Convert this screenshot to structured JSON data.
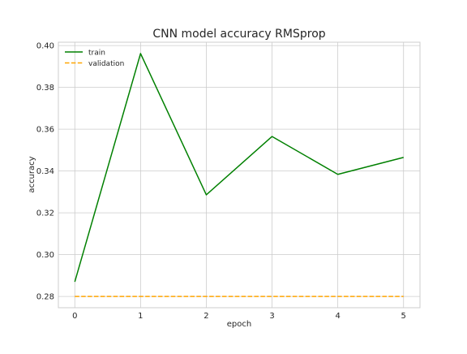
{
  "chart_data": {
    "type": "line",
    "title": "CNN model accuracy RMSprop",
    "xlabel": "epoch",
    "ylabel": "accuracy",
    "x": [
      0,
      1,
      2,
      3,
      4,
      5
    ],
    "series": [
      {
        "name": "train",
        "values": [
          0.287,
          0.3962,
          0.3286,
          0.3565,
          0.3384,
          0.3465
        ],
        "color": "#008000",
        "style": "solid"
      },
      {
        "name": "validation",
        "values": [
          0.28,
          0.28,
          0.28,
          0.28,
          0.28,
          0.28
        ],
        "color": "#ffa500",
        "style": "dashed"
      }
    ],
    "x_ticks": [
      "0",
      "1",
      "2",
      "3",
      "4",
      "5"
    ],
    "y_ticks": [
      "0.28",
      "0.30",
      "0.32",
      "0.34",
      "0.36",
      "0.38",
      "0.40"
    ],
    "xlim": [
      -0.25,
      5.25
    ],
    "ylim": [
      0.2746,
      0.4016
    ],
    "grid": true,
    "legend_position": "top-left"
  }
}
